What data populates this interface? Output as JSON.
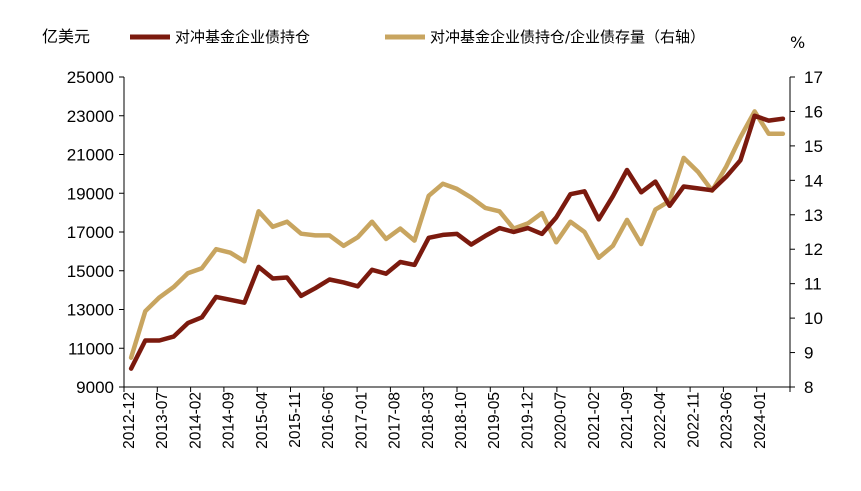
{
  "chart_data": {
    "type": "line",
    "left_unit": "亿美元",
    "right_unit": "%",
    "left_axis": {
      "min": 9000,
      "max": 25000,
      "ticks": [
        9000,
        11000,
        13000,
        15000,
        17000,
        19000,
        21000,
        23000,
        25000
      ]
    },
    "right_axis": {
      "min": 8,
      "max": 17,
      "ticks": [
        8,
        9,
        10,
        11,
        12,
        13,
        14,
        15,
        16,
        17
      ]
    },
    "x_tick_labels": [
      "2012-12",
      "2013-07",
      "2014-02",
      "2014-09",
      "2015-04",
      "2015-11",
      "2016-06",
      "2017-01",
      "2017-08",
      "2018-03",
      "2018-10",
      "2019-05",
      "2019-12",
      "2020-07",
      "2021-02",
      "2021-09",
      "2022-04",
      "2022-11",
      "2023-06",
      "2024-01"
    ],
    "series": [
      {
        "name": "对冲基金企业债持仓",
        "axis": "left",
        "color": "#7B1A0E",
        "values": [
          9950,
          11400,
          11400,
          11600,
          12300,
          12600,
          13650,
          13500,
          13350,
          15200,
          14600,
          14650,
          13700,
          14100,
          14550,
          14400,
          14200,
          15050,
          14850,
          15450,
          15300,
          16700,
          16850,
          16900,
          16350,
          16800,
          17200,
          17000,
          17200,
          16900,
          17750,
          18950,
          19100,
          17650,
          18850,
          20200,
          19050,
          19600,
          18350,
          19350,
          19250,
          19150,
          19850,
          20700,
          23000,
          22750,
          22850
        ]
      },
      {
        "name": "对冲基金企业债持仓/企业债存量（右轴）",
        "axis": "right",
        "color": "#C8A560",
        "values": [
          8.85,
          10.2,
          10.6,
          10.9,
          11.3,
          11.45,
          12.0,
          11.9,
          11.65,
          13.1,
          12.65,
          12.8,
          12.45,
          12.4,
          12.4,
          12.1,
          12.35,
          12.8,
          12.3,
          12.6,
          12.25,
          13.55,
          13.9,
          13.75,
          13.5,
          13.2,
          13.1,
          12.6,
          12.75,
          13.05,
          12.2,
          12.8,
          12.5,
          11.75,
          12.1,
          12.85,
          12.15,
          13.15,
          13.4,
          14.65,
          14.25,
          13.7,
          14.4,
          15.25,
          16.0,
          15.35,
          15.35
        ]
      }
    ]
  }
}
